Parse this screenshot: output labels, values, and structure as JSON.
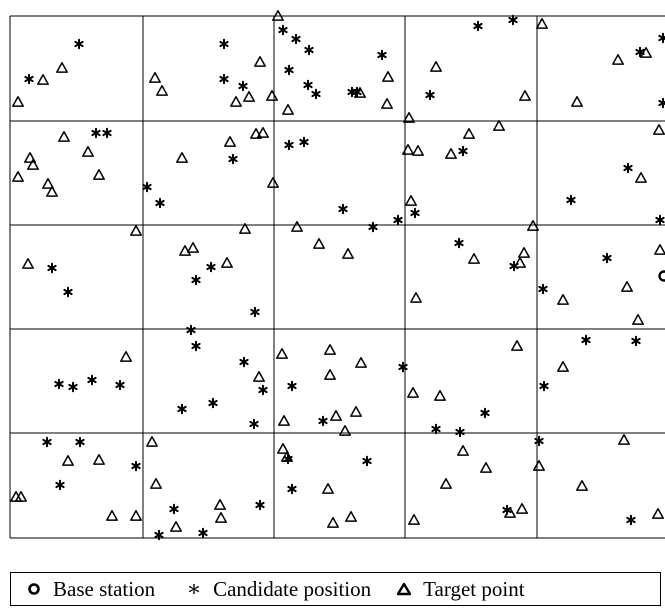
{
  "legend": {
    "base_station": "Base station",
    "candidate_position": "Candidate position",
    "target_point": "Target point"
  },
  "colors": {
    "line": "#000000",
    "background": "#ffffff"
  }
}
